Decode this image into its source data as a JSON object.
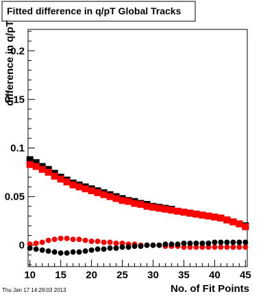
{
  "chart_data": {
    "type": "scatter",
    "title": "Fitted difference in q/pT  Global Tracks",
    "xlabel": "No. of Fit Points",
    "ylabel": "difference in q/pT",
    "xlim": [
      9.7,
      45.3
    ],
    "ylim": [
      -0.022,
      0.222
    ],
    "x_ticks": [
      10,
      15,
      20,
      25,
      30,
      35,
      40,
      45
    ],
    "y_ticks": [
      0,
      0.05,
      0.1,
      0.15,
      0.2
    ],
    "y_tick_labels": [
      "0",
      "0.05",
      "0.1",
      "0.15",
      "0.2"
    ],
    "grid": false,
    "legend": "none",
    "series": [
      {
        "color": "#000000",
        "marker": "square",
        "x": [
          10,
          11,
          12,
          13,
          14,
          15,
          16,
          17,
          18,
          19,
          20,
          21,
          22,
          23,
          24,
          25,
          26,
          27,
          28,
          29,
          30,
          31,
          32,
          33,
          34,
          35,
          36,
          37,
          38,
          39,
          40,
          41,
          42,
          43,
          44,
          45
        ],
        "y": [
          0.088,
          0.085,
          0.081,
          0.078,
          0.074,
          0.07,
          0.067,
          0.064,
          0.062,
          0.06,
          0.058,
          0.056,
          0.054,
          0.052,
          0.05,
          0.048,
          0.046,
          0.045,
          0.043,
          0.042,
          0.04,
          0.039,
          0.038,
          0.037,
          0.035,
          0.034,
          0.033,
          0.032,
          0.031,
          0.03,
          0.029,
          0.028,
          0.026,
          0.024,
          0.022,
          0.02
        ]
      },
      {
        "color": "#ff0000",
        "marker": "square",
        "x": [
          10,
          11,
          12,
          13,
          14,
          15,
          16,
          17,
          18,
          19,
          20,
          21,
          22,
          23,
          24,
          25,
          26,
          27,
          28,
          29,
          30,
          31,
          32,
          33,
          34,
          35,
          36,
          37,
          38,
          39,
          40,
          41,
          42,
          43,
          44,
          45
        ],
        "y": [
          0.083,
          0.081,
          0.078,
          0.075,
          0.071,
          0.068,
          0.065,
          0.062,
          0.06,
          0.058,
          0.056,
          0.054,
          0.052,
          0.05,
          0.048,
          0.046,
          0.045,
          0.043,
          0.042,
          0.04,
          0.039,
          0.038,
          0.037,
          0.036,
          0.035,
          0.034,
          0.033,
          0.032,
          0.031,
          0.03,
          0.029,
          0.028,
          0.026,
          0.024,
          0.022,
          0.019
        ]
      },
      {
        "color": "#ff0000",
        "marker": "circle",
        "x": [
          10,
          11,
          12,
          13,
          14,
          15,
          16,
          17,
          18,
          19,
          20,
          21,
          22,
          23,
          24,
          25,
          26,
          27,
          28,
          29,
          30,
          31,
          32,
          33,
          34,
          35,
          36,
          37,
          38,
          39,
          40,
          41,
          42,
          43,
          44,
          45
        ],
        "y": [
          0.001,
          0.002,
          0.003,
          0.005,
          0.006,
          0.007,
          0.007,
          0.006,
          0.006,
          0.005,
          0.004,
          0.004,
          0.003,
          0.003,
          0.002,
          0.002,
          0.001,
          0.001,
          0.0,
          0.0,
          0.0,
          0.0,
          -0.001,
          -0.001,
          -0.001,
          -0.002,
          -0.002,
          -0.002,
          -0.002,
          -0.002,
          -0.002,
          -0.002,
          -0.002,
          -0.002,
          -0.002,
          -0.002
        ]
      },
      {
        "color": "#000000",
        "marker": "circle",
        "x": [
          10,
          11,
          12,
          13,
          14,
          15,
          16,
          17,
          18,
          19,
          20,
          21,
          22,
          23,
          24,
          25,
          26,
          27,
          28,
          29,
          30,
          31,
          32,
          33,
          34,
          35,
          36,
          37,
          38,
          39,
          40,
          41,
          42,
          43,
          44,
          45
        ],
        "y": [
          -0.003,
          -0.004,
          -0.005,
          -0.006,
          -0.007,
          -0.008,
          -0.008,
          -0.007,
          -0.007,
          -0.006,
          -0.005,
          -0.004,
          -0.004,
          -0.003,
          -0.003,
          -0.002,
          -0.002,
          -0.001,
          -0.001,
          0.0,
          0.0,
          0.0,
          0.001,
          0.001,
          0.001,
          0.002,
          0.002,
          0.002,
          0.002,
          0.002,
          0.003,
          0.003,
          0.003,
          0.003,
          0.003,
          0.003
        ]
      }
    ]
  },
  "footer": {
    "timestamp": "Thu Jan 17 14:29:03 2013"
  }
}
